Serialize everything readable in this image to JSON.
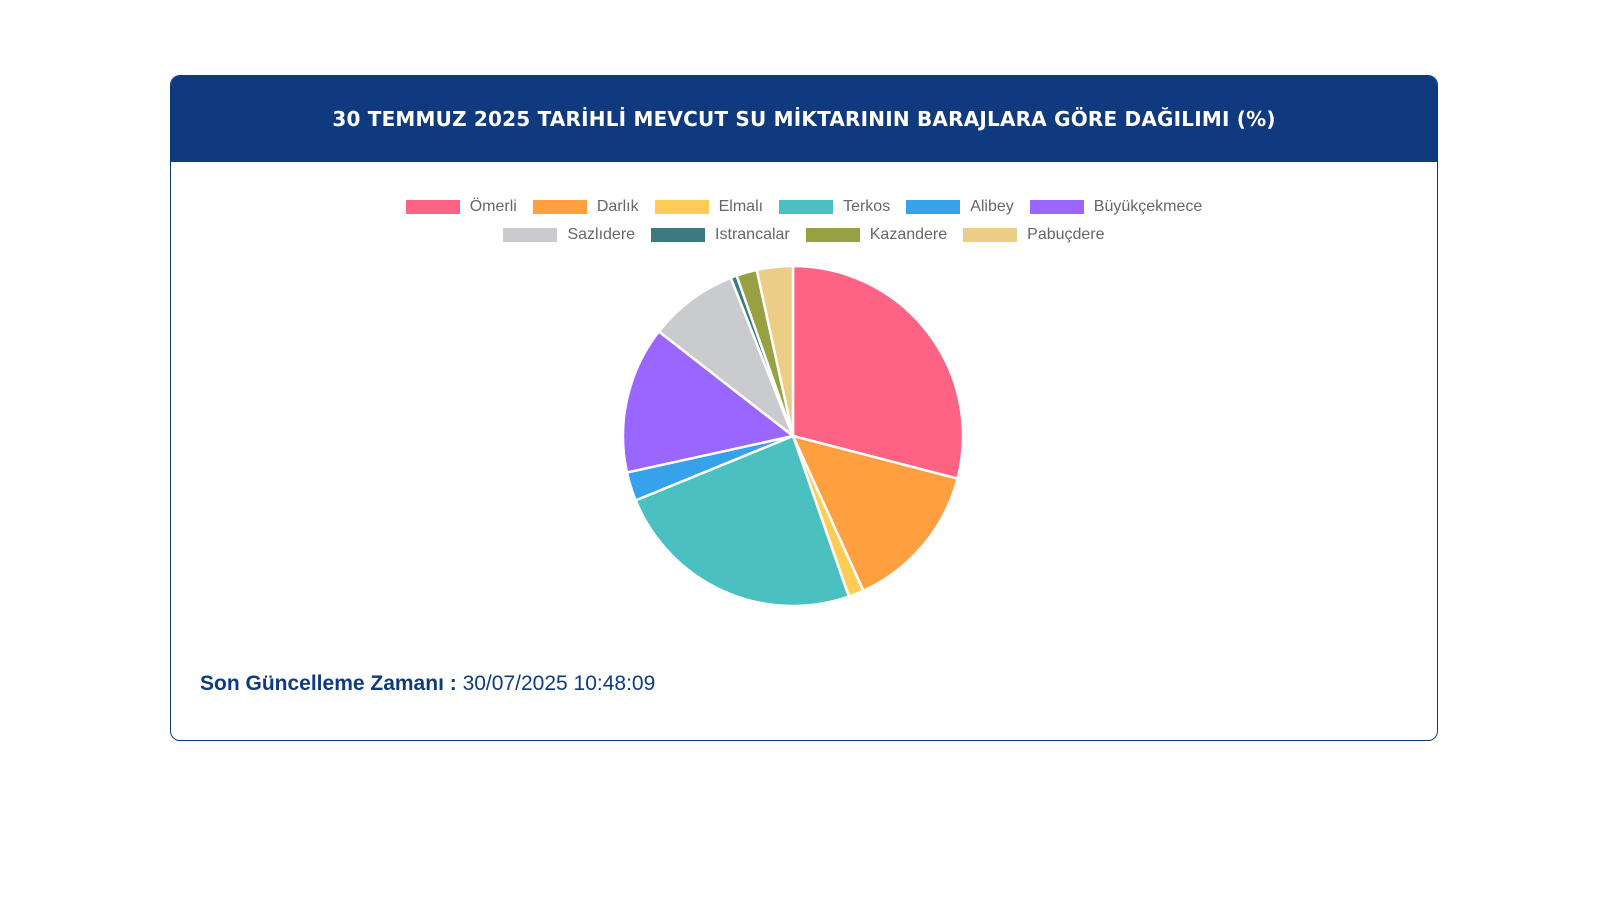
{
  "card": {
    "title": "30 TEMMUZ 2025 TARİHLİ MEVCUT SU MİKTARININ BARAJLARA GÖRE DAĞILIMI (%)",
    "update_label": "Son Güncelleme Zamanı :",
    "update_value": "30/07/2025 10:48:09"
  },
  "chart_data": {
    "type": "pie",
    "categories": [
      "Ömerli",
      "Darlık",
      "Elmalı",
      "Terkos",
      "Alibey",
      "Büyükçekmece",
      "Sazlıdere",
      "Istrancalar",
      "Kazandere",
      "Pabuçdere"
    ],
    "values": [
      29.7,
      14.5,
      1.5,
      24.7,
      2.8,
      14.3,
      8.7,
      0.6,
      2.0,
      3.5
    ],
    "colors": [
      "#ff6384",
      "#ff9f40",
      "#ffcd56",
      "#4bc0c0",
      "#36a2eb",
      "#9966ff",
      "#c9cbcf",
      "#3b7a7e",
      "#97a141",
      "#ebcd86"
    ],
    "legend_position": "top"
  }
}
